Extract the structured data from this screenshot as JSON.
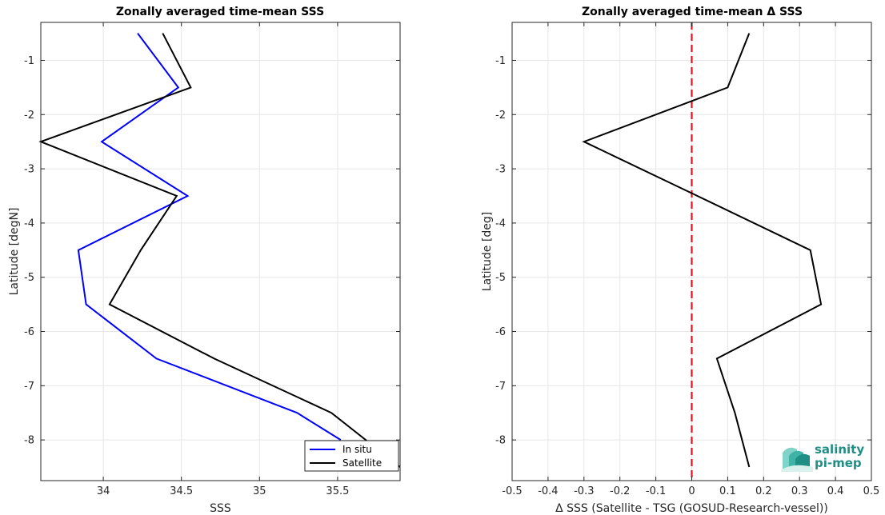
{
  "chart_data": [
    {
      "type": "line",
      "title": "Zonally averaged time-mean SSS",
      "xlabel": "SSS",
      "ylabel": "Latitude [degN]",
      "xlim": [
        33.6,
        35.9
      ],
      "ylim": [
        -8.75,
        -0.3
      ],
      "xticks": [
        "34",
        "34.5",
        "35",
        "35.5"
      ],
      "xtick_values": [
        34,
        34.5,
        35,
        35.5
      ],
      "yticks": [
        "-1",
        "-2",
        "-3",
        "-4",
        "-5",
        "-6",
        "-7",
        "-8"
      ],
      "ytick_values": [
        -1,
        -2,
        -3,
        -4,
        -5,
        -6,
        -7,
        -8
      ],
      "grid": true,
      "legend_position": "bottom-right",
      "series": [
        {
          "name": "In situ",
          "color": "#0000ff",
          "points": [
            [
              34.22,
              -0.5
            ],
            [
              34.48,
              -1.5
            ],
            [
              33.99,
              -2.5
            ],
            [
              34.54,
              -3.5
            ],
            [
              33.84,
              -4.5
            ],
            [
              33.89,
              -5.5
            ],
            [
              34.34,
              -6.5
            ],
            [
              35.24,
              -7.5
            ],
            [
              35.52,
              -8.0
            ]
          ]
        },
        {
          "name": "Satellite",
          "color": "#000000",
          "points": [
            [
              34.38,
              -0.5
            ],
            [
              34.56,
              -1.5
            ],
            [
              33.6,
              -2.5
            ],
            [
              34.47,
              -3.5
            ],
            [
              34.24,
              -4.5
            ],
            [
              34.04,
              -5.5
            ],
            [
              34.71,
              -6.5
            ],
            [
              35.46,
              -7.5
            ],
            [
              35.9,
              -8.5
            ]
          ]
        }
      ]
    },
    {
      "type": "line",
      "title": "Zonally averaged time-mean Δ SSS",
      "xlabel": "Δ SSS (Satellite - TSG (GOSUD-Research-vessel))",
      "ylabel": "Latitude [deg]",
      "xlim": [
        -0.5,
        0.5
      ],
      "ylim": [
        -8.75,
        -0.3
      ],
      "xticks": [
        "-0.5",
        "-0.4",
        "-0.3",
        "-0.2",
        "-0.1",
        "0",
        "0.1",
        "0.2",
        "0.3",
        "0.4",
        "0.5"
      ],
      "xtick_values": [
        -0.5,
        -0.4,
        -0.3,
        -0.2,
        -0.1,
        0,
        0.1,
        0.2,
        0.3,
        0.4,
        0.5
      ],
      "yticks": [
        "-1",
        "-2",
        "-3",
        "-4",
        "-5",
        "-6",
        "-7",
        "-8"
      ],
      "ytick_values": [
        -1,
        -2,
        -3,
        -4,
        -5,
        -6,
        -7,
        -8
      ],
      "grid": true,
      "reference_line": {
        "x": 0,
        "color": "#e0141e",
        "style": "dashed"
      },
      "series": [
        {
          "color": "#000000",
          "points": [
            [
              0.16,
              -0.5
            ],
            [
              0.1,
              -1.5
            ],
            [
              -0.3,
              -2.5
            ],
            [
              0.0,
              -3.45
            ],
            [
              0.33,
              -4.5
            ],
            [
              0.36,
              -5.5
            ],
            [
              0.07,
              -6.5
            ],
            [
              0.12,
              -7.5
            ],
            [
              0.16,
              -8.5
            ]
          ]
        }
      ]
    }
  ],
  "logo": {
    "line1": "salinity",
    "line2": "pi-mep",
    "color": "#1f8f86"
  }
}
